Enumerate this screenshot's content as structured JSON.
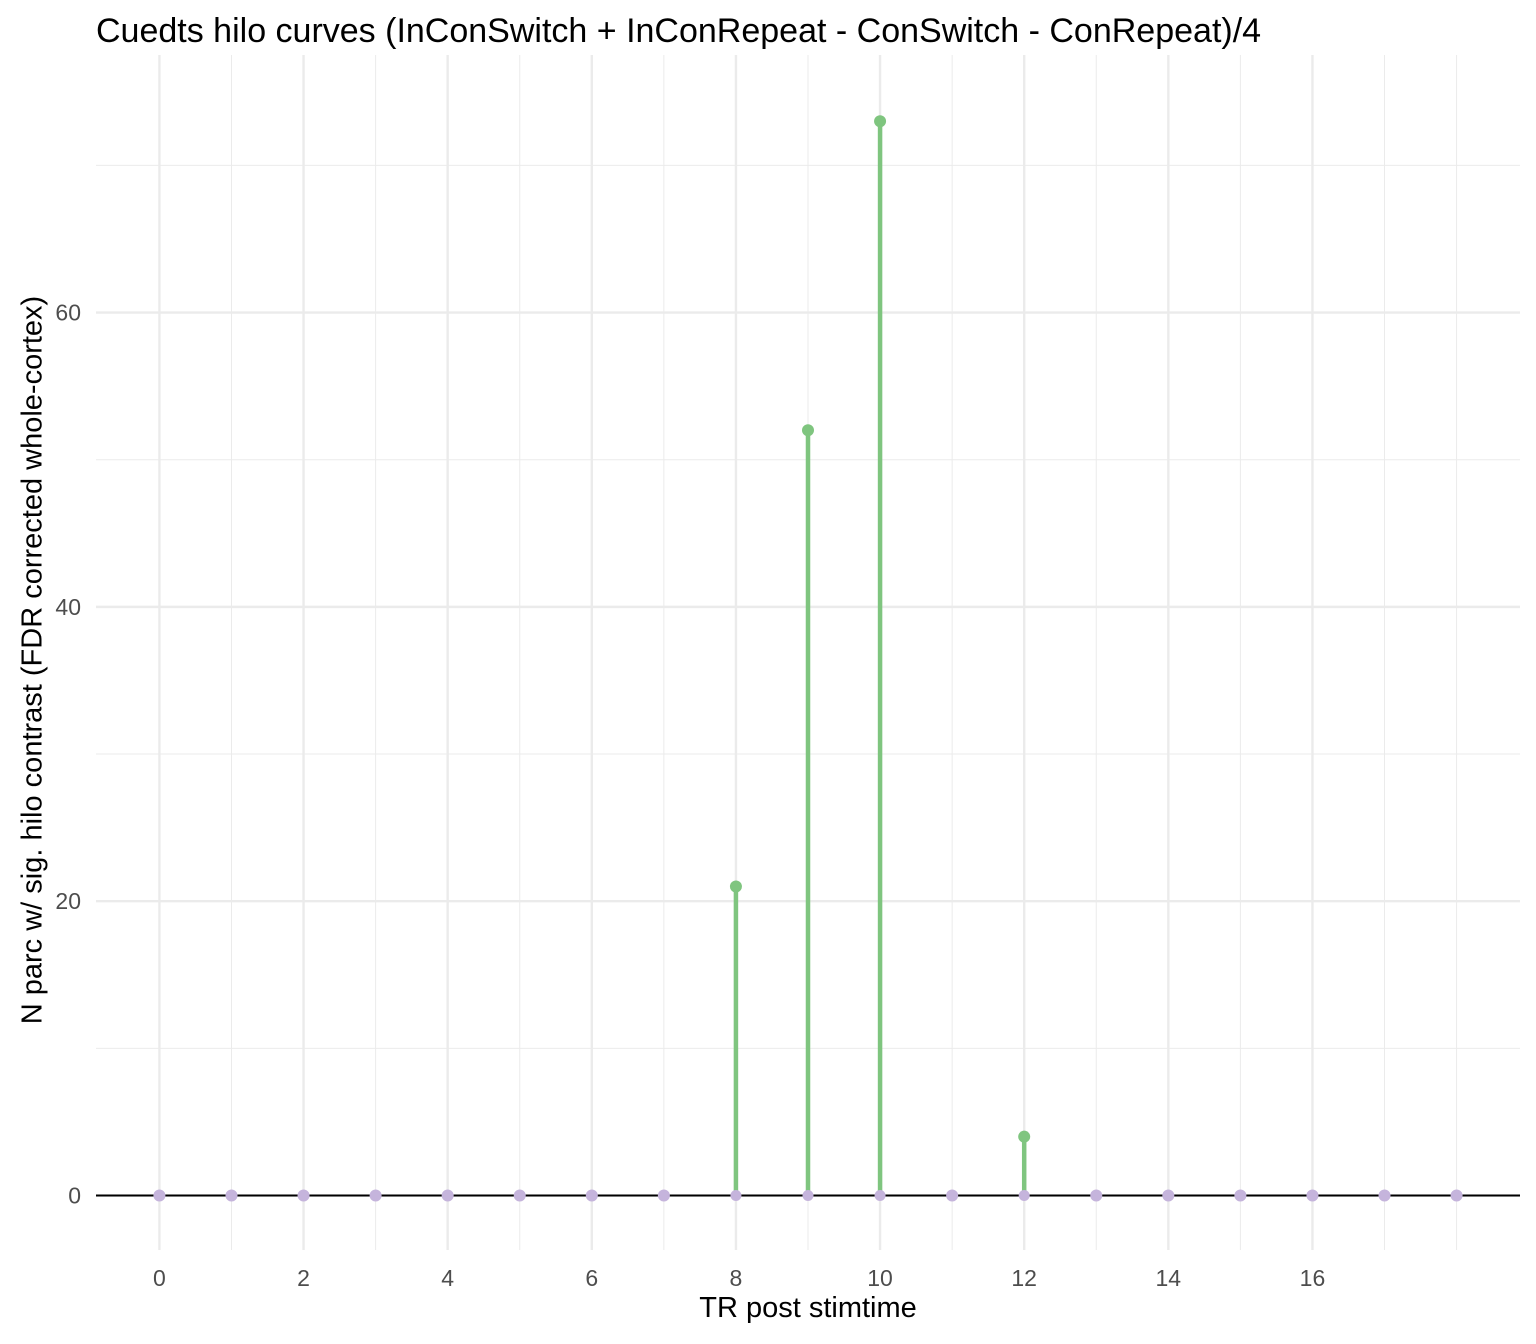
{
  "chart_data": {
    "type": "lollipop",
    "title": "Cuedts hilo curves (InConSwitch + InConRepeat - ConSwitch - ConRepeat)/4",
    "xlabel": "TR post stimtime",
    "ylabel": "N parc w/ sig. hilo contrast (FDR corrected whole-cortex)",
    "x": [
      0,
      1,
      2,
      3,
      4,
      5,
      6,
      7,
      8,
      9,
      10,
      11,
      12,
      13,
      14,
      15,
      16,
      17,
      18
    ],
    "values": [
      0,
      0,
      0,
      0,
      0,
      0,
      0,
      0,
      21,
      52,
      73,
      0,
      4,
      0,
      0,
      0,
      0,
      0,
      0
    ],
    "xlim": [
      -0.88,
      18.88
    ],
    "ylim": [
      -3.7,
      77.5
    ],
    "x_ticks": [
      0,
      2,
      4,
      6,
      8,
      10,
      12,
      14,
      16
    ],
    "y_ticks": [
      0,
      20,
      40,
      60
    ],
    "grid": true,
    "baseline": 0,
    "colors": {
      "nonzero": "#7fc57f",
      "zero": "#c5b4dc",
      "grid": "#ebebeb",
      "baseline": "#000000",
      "tick_text": "#4d4d4d"
    }
  }
}
